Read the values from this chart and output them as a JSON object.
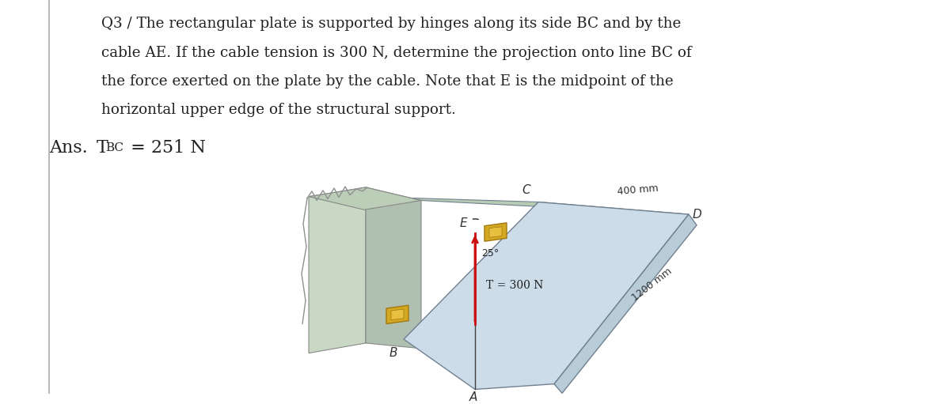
{
  "background_color": "#ffffff",
  "support_front_color": "#c8d8c4",
  "support_right_color": "#b0c0b0",
  "support_top_color": "#bcceb8",
  "plate_face_color": "#ccdce8",
  "plate_back_color": "#b8ccd8",
  "plate_edge_color": "#a0b8c0",
  "hinge_color": "#d4a820",
  "hinge_edge_color": "#a07810",
  "arrow_color": "#cc1010",
  "cable_color": "#404040",
  "text_color": "#222222",
  "label_color": "#333333",
  "line_color": "#888888",
  "border_color": "#aaaaaa",
  "title_line1": "Q3 / The rectangular plate is supported by hinges along its side BC and by the",
  "title_line2": "cable AE. If the cable tension is 300 N, determine the projection onto line BC of",
  "title_line3": "the force exerted on the plate by the cable. Note that E is the midpoint of the",
  "title_line4": "horizontal upper edge of the structural support.",
  "font_size_body": 13.2,
  "font_size_ans": 16,
  "font_size_label": 11,
  "font_size_small": 9.5
}
